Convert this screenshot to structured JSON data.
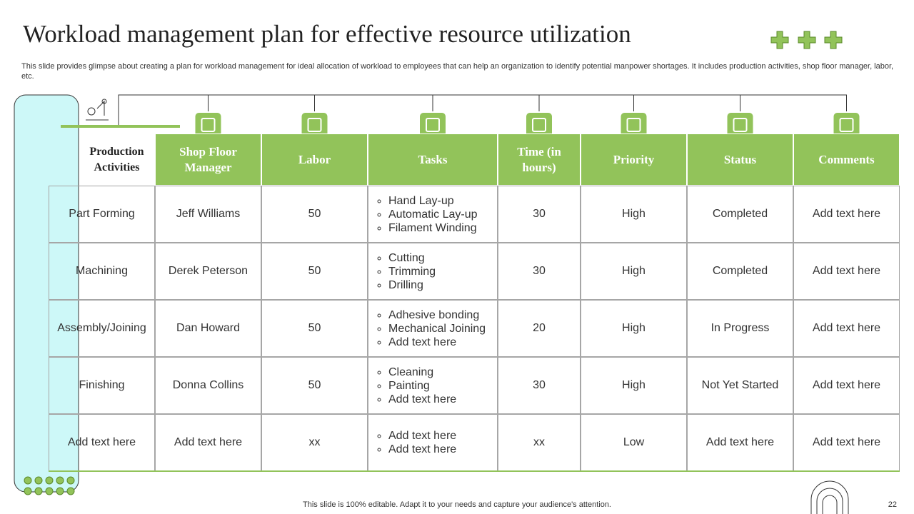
{
  "header": {
    "title": "Workload management plan for effective resource utilization",
    "subtitle": "This slide provides glimpse about creating a plan for workload management for ideal allocation of workload to employees that can help an organization to identify potential manpower shortages. It includes production activities, shop floor manager, labor, etc."
  },
  "table": {
    "corner": "Production Activities",
    "columns": [
      "Shop Floor Manager",
      "Labor",
      "Tasks",
      "Time (in hours)",
      "Priority",
      "Status",
      "Comments"
    ],
    "rows": [
      [
        "Part Forming",
        "Jeff Williams",
        "50",
        [
          "Hand Lay-up",
          "Automatic Lay-up",
          "Filament Winding"
        ],
        "30",
        "High",
        "Completed",
        "Add text here"
      ],
      [
        "Machining",
        "Derek Peterson",
        "50",
        [
          "Cutting",
          "Trimming",
          "Drilling"
        ],
        "30",
        "High",
        "Completed",
        "Add text here"
      ],
      [
        "Assembly/Joining",
        "Dan Howard",
        "50",
        [
          "Adhesive bonding",
          "Mechanical Joining",
          "Add text here"
        ],
        "20",
        "High",
        "In Progress",
        "Add text here"
      ],
      [
        "Finishing",
        "Donna Collins",
        "50",
        [
          "Cleaning",
          "Painting",
          "Add text here"
        ],
        "30",
        "High",
        "Not Yet Started",
        "Add text here"
      ],
      [
        "Add text here",
        "Add text here",
        "xx",
        [
          "Add text here",
          "Add text here"
        ],
        "xx",
        "Low",
        "Add text here",
        "Add text here"
      ]
    ]
  },
  "footer": {
    "note": "This slide is 100% editable. Adapt it to your needs and capture your audience's attention.",
    "page": "22"
  }
}
